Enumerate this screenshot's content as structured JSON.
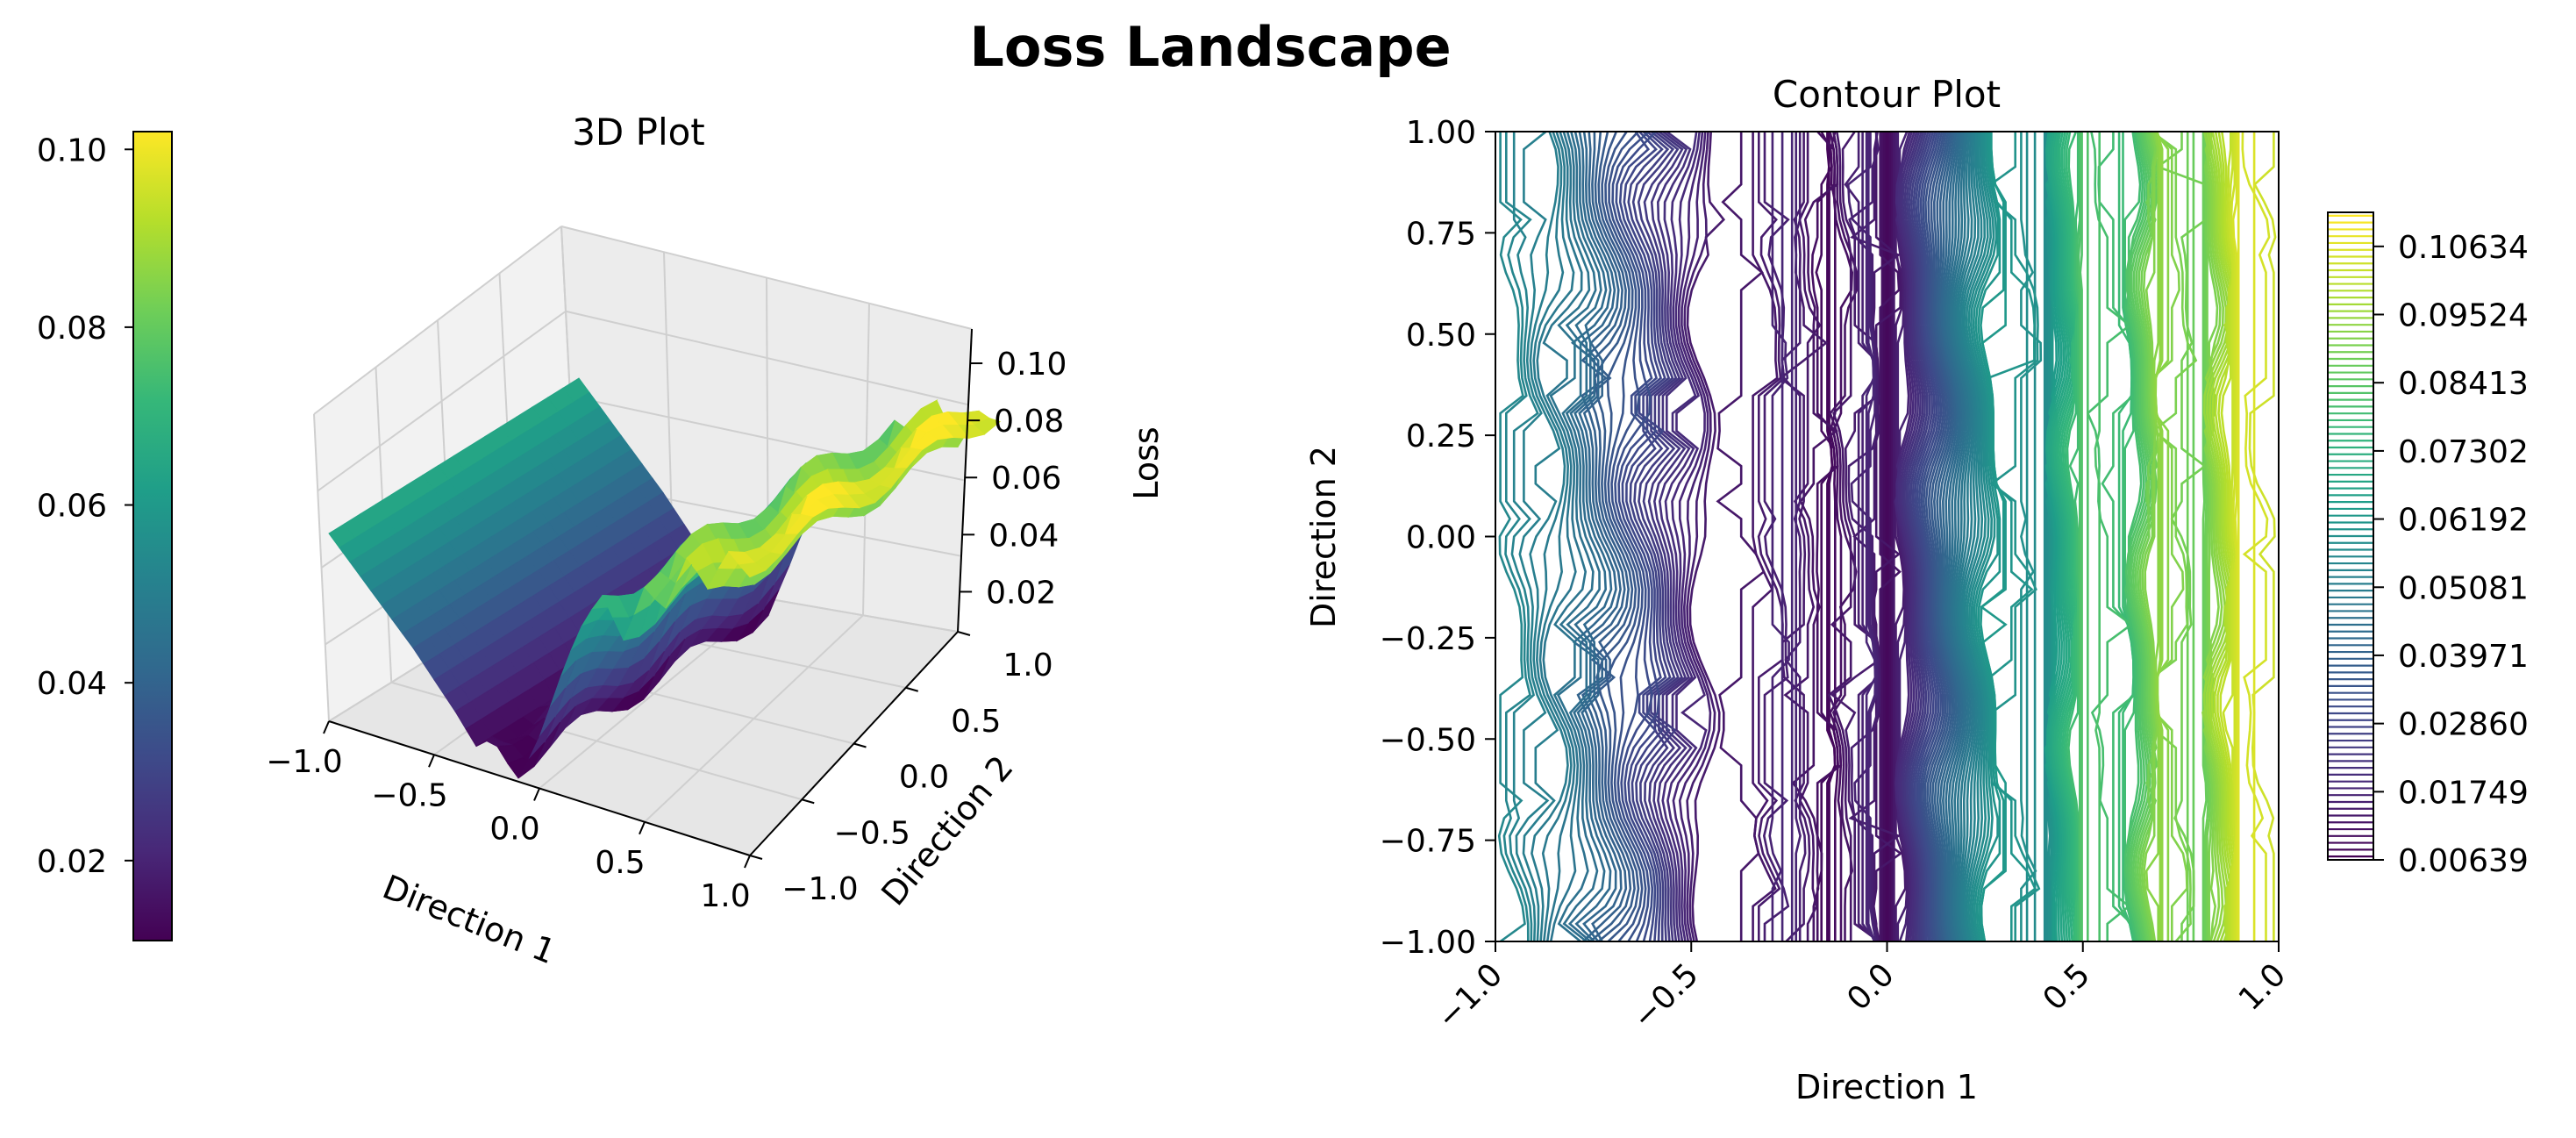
{
  "figure": {
    "title": "Loss Landscape"
  },
  "colors": {
    "viridis": [
      "#440154",
      "#482878",
      "#3e4989",
      "#31688e",
      "#26828e",
      "#1f9e89",
      "#35b779",
      "#6ece58",
      "#b5de2b",
      "#fde725"
    ],
    "axis": "#000000",
    "grid": "#c8c8c8",
    "pane": "#f2f2f2"
  },
  "chart_data": [
    {
      "type": "surface",
      "title": "3D Plot",
      "xlabel": "Direction 1",
      "ylabel": "Direction 2",
      "zlabel": "Loss",
      "xlim": [
        -1.0,
        1.0
      ],
      "ylim": [
        -1.0,
        1.0
      ],
      "x_ticks": [
        "−1.0",
        "−0.5",
        "0.0",
        "0.5",
        "1.0"
      ],
      "y_ticks": [
        "−1.0",
        "−0.5",
        "0.0",
        "0.5",
        "1.0"
      ],
      "z_ticks": [
        "0.02",
        "0.04",
        "0.06",
        "0.08",
        "0.10"
      ],
      "z_tick_values": [
        0.02,
        0.04,
        0.06,
        0.08,
        0.1
      ],
      "zlim": [
        0.006,
        0.112
      ],
      "colorbar": {
        "range": [
          0.011,
          0.102
        ],
        "ticks": [
          "0.02",
          "0.04",
          "0.06",
          "0.08",
          "0.10"
        ],
        "tick_values": [
          0.02,
          0.04,
          0.06,
          0.08,
          0.1
        ]
      },
      "x_samples": [
        -1.0,
        -0.8,
        -0.6,
        -0.4,
        -0.3,
        -0.2,
        -0.1,
        0.0,
        0.1,
        0.2,
        0.3,
        0.4,
        0.5,
        0.6,
        0.7,
        0.8,
        0.9,
        1.0
      ],
      "loss_profile": [
        0.066,
        0.052,
        0.038,
        0.022,
        0.013,
        0.016,
        0.011,
        0.025,
        0.042,
        0.058,
        0.072,
        0.064,
        0.085,
        0.078,
        0.092,
        0.083,
        0.1,
        0.098
      ]
    },
    {
      "type": "contour",
      "title": "Contour Plot",
      "xlabel": "Direction 1",
      "ylabel": "Direction 2",
      "xlim": [
        -1.0,
        1.0
      ],
      "ylim": [
        -1.0,
        1.0
      ],
      "x_ticks": [
        "−1.0",
        "−0.5",
        "0.0",
        "0.5",
        "1.0"
      ],
      "x_tick_values": [
        -1.0,
        -0.5,
        0.0,
        0.5,
        1.0
      ],
      "y_ticks": [
        "1.00",
        "0.75",
        "0.50",
        "0.25",
        "0.00",
        "−0.25",
        "−0.50",
        "−0.75",
        "−1.00"
      ],
      "y_tick_values": [
        1.0,
        0.75,
        0.5,
        0.25,
        0.0,
        -0.25,
        -0.5,
        -0.75,
        -1.0
      ],
      "levels_range": [
        0.00639,
        0.11189
      ],
      "colorbar": {
        "ticks": [
          "0.10634",
          "0.09524",
          "0.08413",
          "0.07302",
          "0.06192",
          "0.05081",
          "0.03971",
          "0.02860",
          "0.01749",
          "0.00639"
        ],
        "tick_values": [
          0.10634,
          0.09524,
          0.08413,
          0.07302,
          0.06192,
          0.05081,
          0.03971,
          0.0286,
          0.01749,
          0.00639
        ]
      },
      "x_samples": [
        -1.0,
        -0.8,
        -0.6,
        -0.45,
        -0.35,
        -0.25,
        -0.15,
        -0.05,
        0.0,
        0.1,
        0.2,
        0.3,
        0.4,
        0.5,
        0.6,
        0.7,
        0.8,
        0.9,
        1.0
      ],
      "loss_profile": [
        0.062,
        0.045,
        0.028,
        0.012,
        0.007,
        0.015,
        0.01,
        0.02,
        0.008,
        0.03,
        0.05,
        0.068,
        0.06,
        0.082,
        0.075,
        0.095,
        0.088,
        0.105,
        0.098
      ]
    }
  ]
}
